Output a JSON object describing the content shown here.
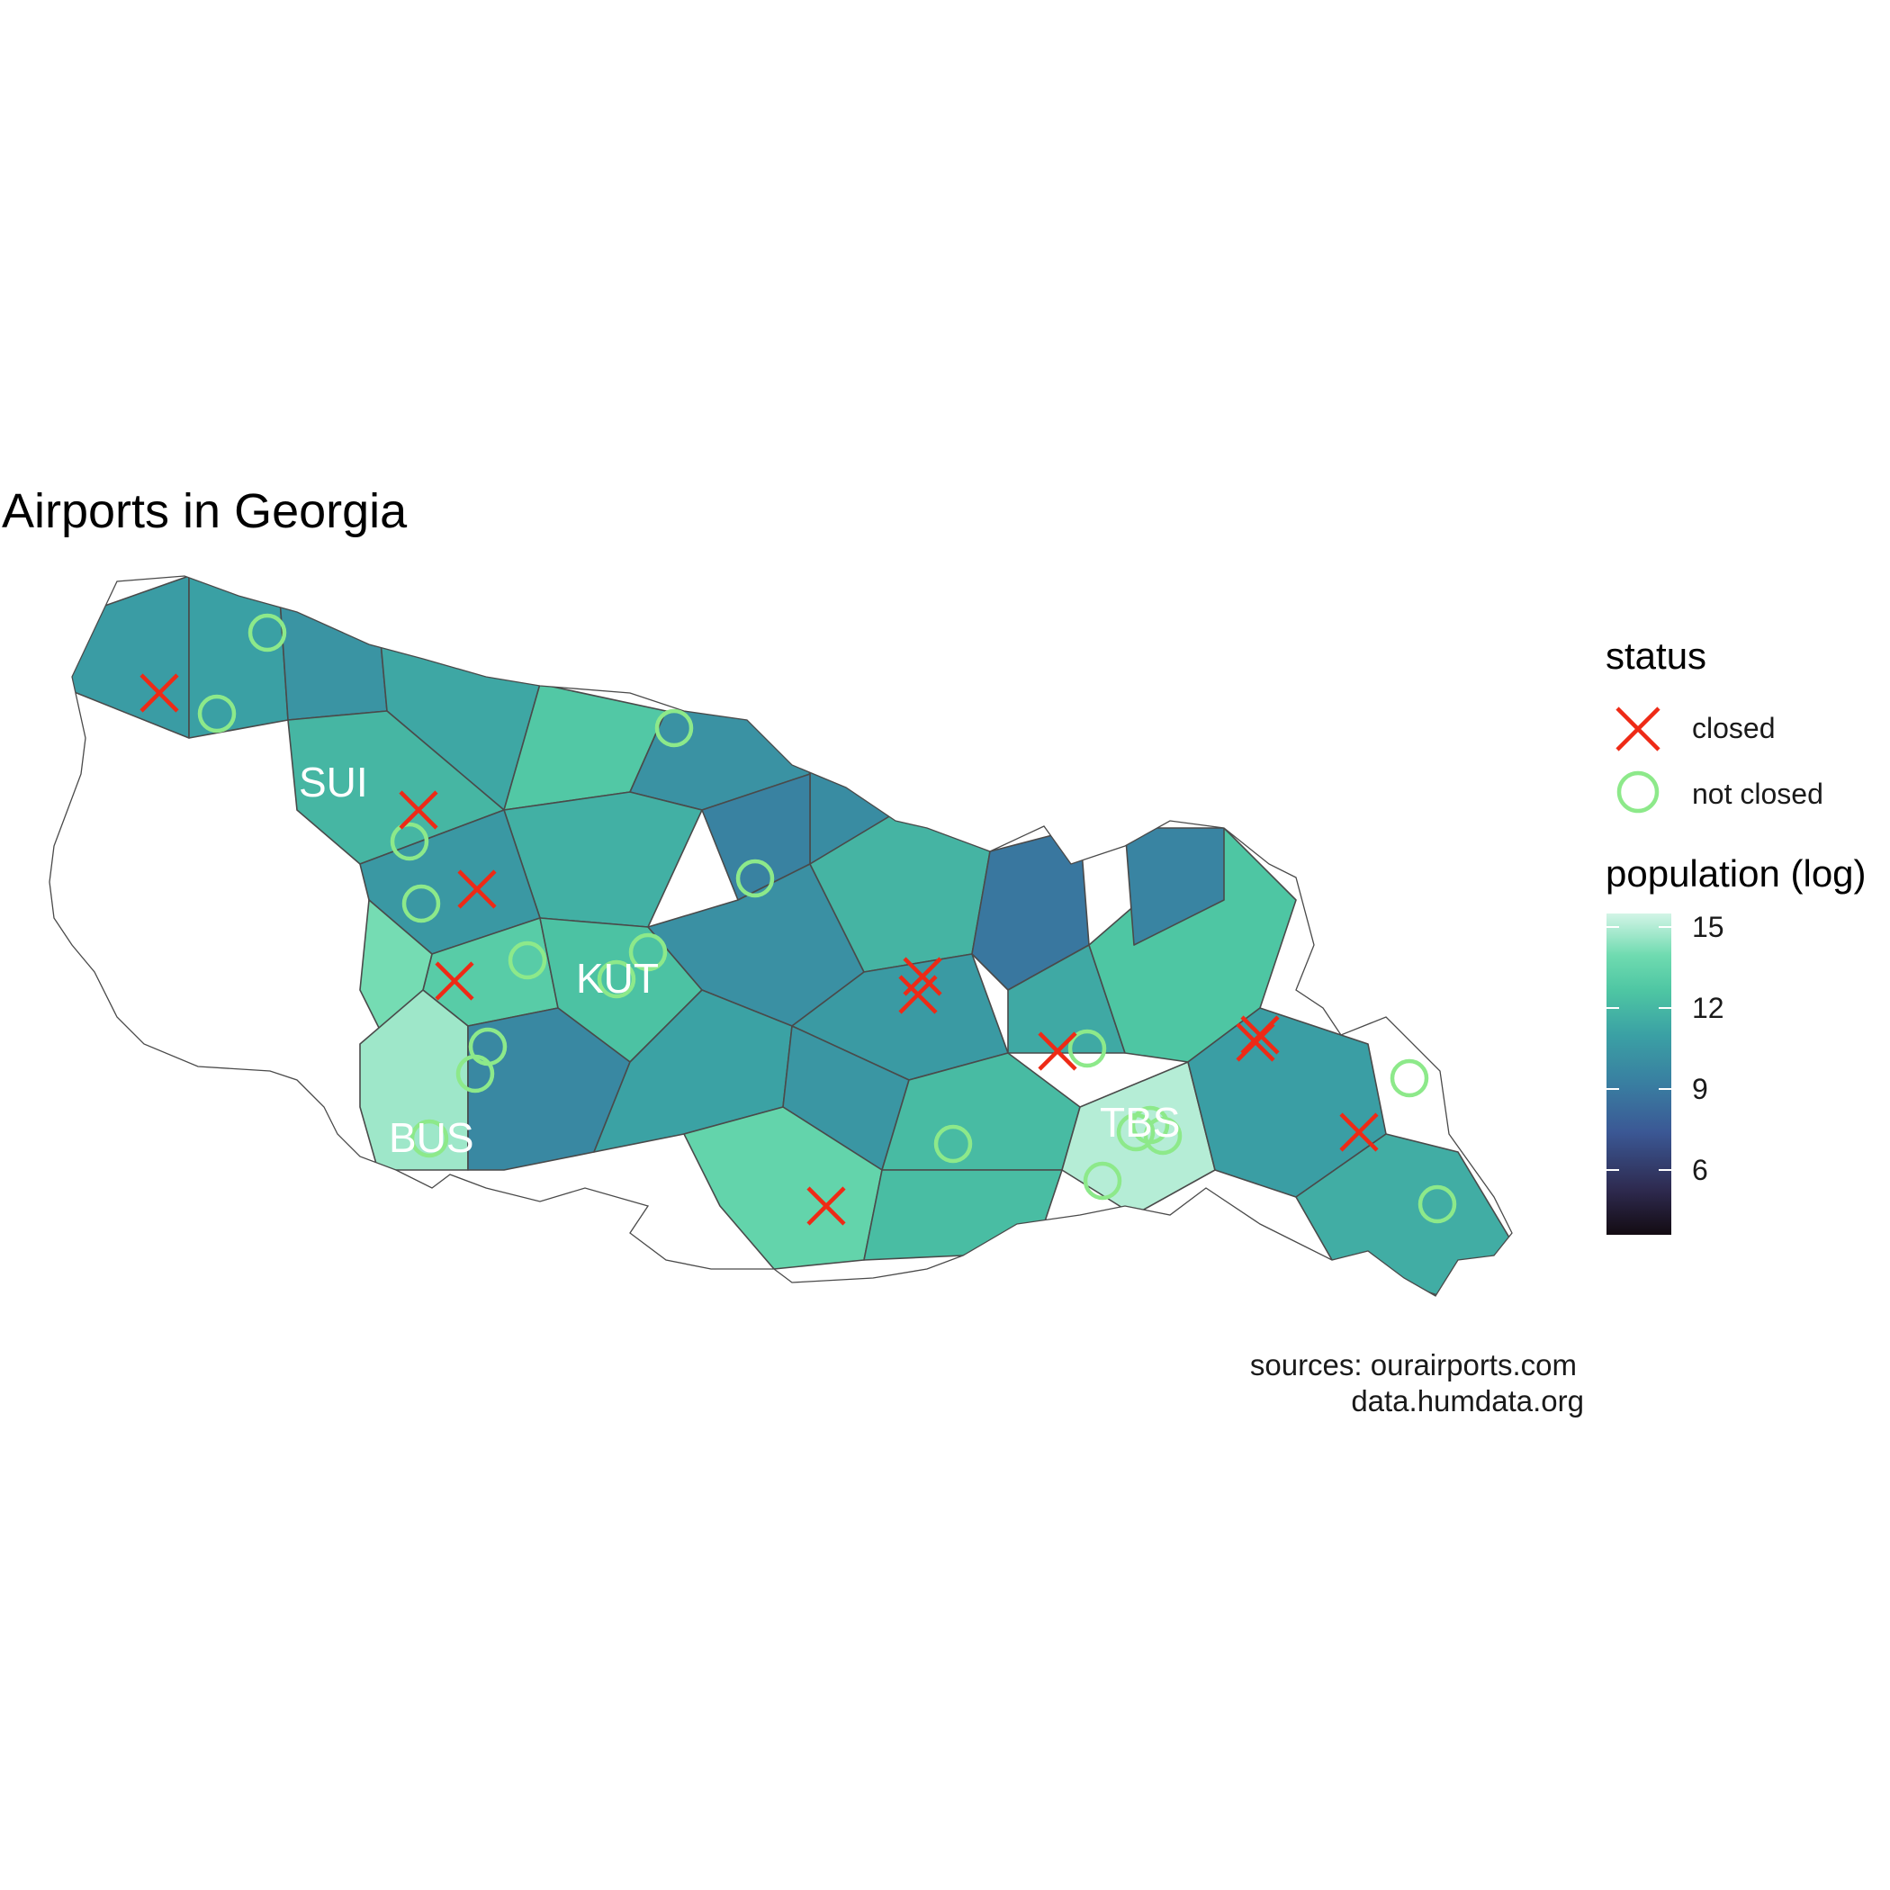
{
  "title": "Airports in Georgia",
  "caption": [
    "sources:  ourairports.com",
    "data.humdata.org"
  ],
  "legend": {
    "status_title": "status",
    "status_items": [
      {
        "label": "closed",
        "shape": "x-cross",
        "color": "#ee2a16"
      },
      {
        "label": "not closed",
        "shape": "open-circle",
        "color": "#8de98a"
      }
    ],
    "population_title": "population (log)",
    "population_ticks": [
      "15",
      "12",
      "9",
      "6"
    ],
    "population_tick_values": [
      15,
      12,
      9,
      6
    ],
    "population_range": [
      3.6,
      15.5
    ],
    "colorscale": [
      "#130b12",
      "#2e2a4f",
      "#3b5895",
      "#397ea1",
      "#3aa0a4",
      "#4ec6a3",
      "#6fdbb0",
      "#d2f4e6"
    ]
  },
  "city_labels": [
    "SUI",
    "KUT",
    "TBS",
    "BUS"
  ],
  "region_population_log": [
    10.2,
    10.4,
    9.8,
    10.7,
    12.3,
    11.4,
    9.7,
    9.4,
    8.9,
    11.1,
    10.0,
    12.6,
    13.9,
    14.6,
    11.9,
    9.2,
    9.6,
    10.5,
    11.3,
    10.1,
    9.9,
    13.2,
    8.4,
    10.8,
    11.6,
    15.0,
    11.7,
    12.1,
    9.0,
    10.3,
    11.0
  ]
}
